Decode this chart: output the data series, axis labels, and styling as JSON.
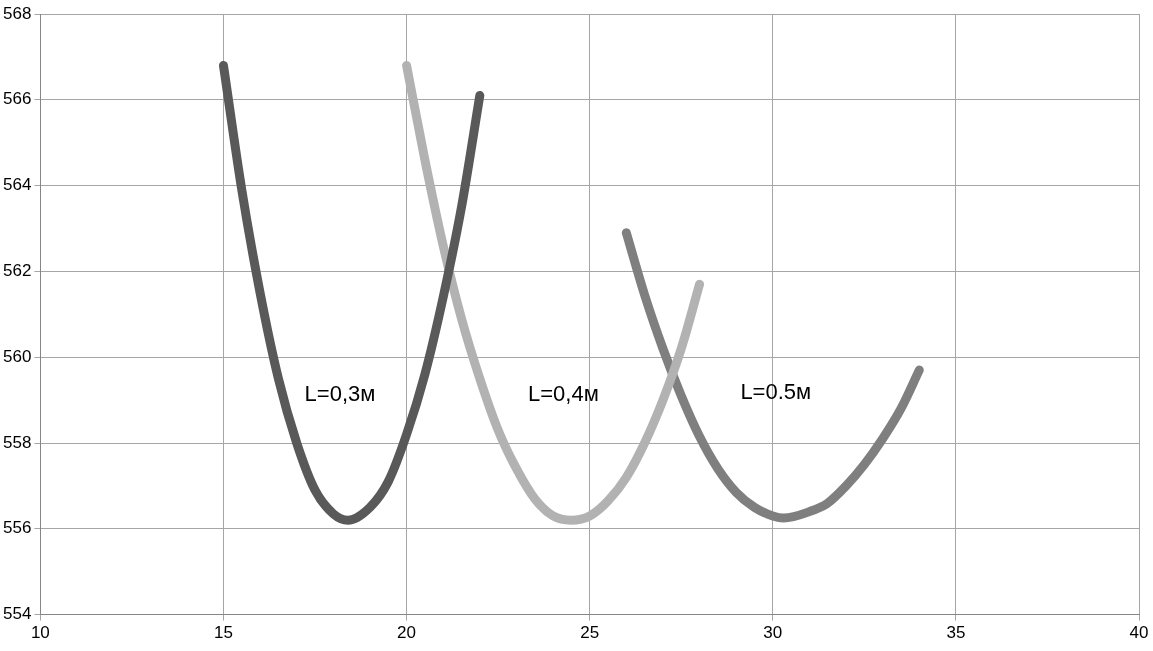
{
  "chart_data": {
    "type": "line",
    "xlim": [
      10,
      40
    ],
    "xticks": [
      10,
      15,
      20,
      25,
      30,
      35,
      40
    ],
    "ylim": [
      554,
      568
    ],
    "yticks": [
      554,
      556,
      558,
      560,
      562,
      564,
      566,
      568
    ],
    "grid": true,
    "legend": false,
    "marker": "none",
    "line_style": "solid",
    "series": [
      {
        "name": "L=0,3м",
        "color": "#595959",
        "x": [
          15,
          15.5,
          16,
          16.5,
          17,
          17.5,
          18,
          18.4,
          19,
          19.5,
          20,
          20.5,
          21,
          21.5,
          22
        ],
        "values": [
          566.8,
          563.9,
          561.5,
          559.5,
          558.0,
          556.9,
          556.35,
          556.2,
          556.5,
          557.1,
          558.2,
          559.6,
          561.4,
          563.5,
          566.1
        ]
      },
      {
        "name": "L=0,4м",
        "color": "#b2b2b2",
        "x": [
          20,
          20.5,
          21,
          21.5,
          22,
          22.5,
          23,
          23.5,
          24,
          24.5,
          25,
          25.5,
          26,
          26.5,
          27,
          27.5,
          28
        ],
        "values": [
          566.8,
          564.6,
          562.6,
          560.9,
          559.5,
          558.3,
          557.4,
          556.7,
          556.3,
          556.2,
          556.3,
          556.65,
          557.2,
          558.0,
          559.0,
          560.2,
          561.7
        ]
      },
      {
        "name": "L=0.5м",
        "color": "#7f7f7f",
        "x": [
          26,
          26.5,
          27,
          27.5,
          28,
          28.5,
          29,
          29.5,
          30,
          30.3,
          31,
          31.5,
          32,
          32.5,
          33,
          33.5,
          34
        ],
        "values": [
          562.9,
          561.45,
          560.2,
          559.1,
          558.15,
          557.4,
          556.85,
          556.5,
          556.3,
          556.25,
          556.4,
          556.6,
          557.0,
          557.5,
          558.1,
          558.8,
          559.7
        ]
      }
    ]
  }
}
